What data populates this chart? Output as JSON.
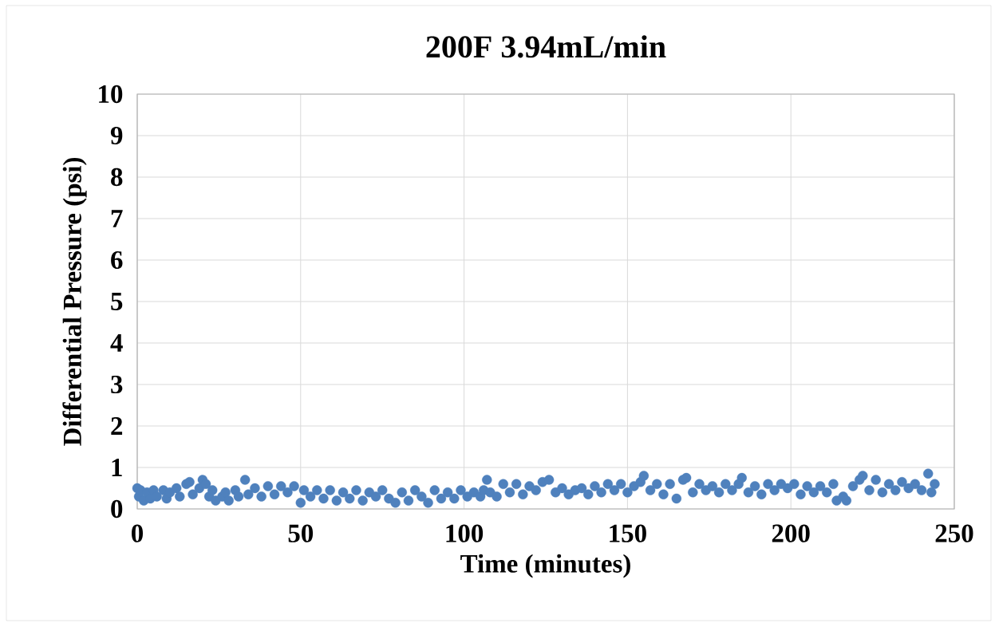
{
  "chart_data": {
    "type": "scatter",
    "title": "200F 3.94mL/min",
    "xlabel": "Time (minutes)",
    "ylabel": "Differential Pressure (psi)",
    "xlim": [
      0,
      250
    ],
    "xticks": [
      0,
      50,
      100,
      150,
      200,
      250
    ],
    "ylim": [
      0,
      10
    ],
    "yticks": [
      0,
      1,
      2,
      3,
      4,
      5,
      6,
      7,
      8,
      9,
      10
    ],
    "grid": true,
    "marker": "circle",
    "series": [
      {
        "color": "#4f81bd",
        "x": [
          0,
          0.5,
          1,
          2,
          3,
          4,
          5,
          6,
          8,
          9,
          10,
          12,
          13,
          15,
          16,
          17,
          19,
          20,
          21,
          22,
          23,
          24,
          26,
          27,
          28,
          30,
          31,
          33,
          34,
          36,
          38,
          40,
          42,
          44,
          46,
          48,
          50,
          51,
          53,
          55,
          57,
          59,
          61,
          63,
          65,
          67,
          69,
          71,
          73,
          75,
          77,
          79,
          81,
          83,
          85,
          87,
          89,
          91,
          93,
          95,
          97,
          99,
          101,
          103,
          105,
          106,
          107,
          108,
          110,
          112,
          114,
          116,
          118,
          120,
          122,
          124,
          126,
          128,
          130,
          132,
          134,
          136,
          138,
          140,
          142,
          144,
          146,
          148,
          150,
          152,
          154,
          155,
          157,
          159,
          161,
          163,
          165,
          167,
          168,
          170,
          172,
          174,
          176,
          178,
          180,
          182,
          184,
          185,
          187,
          189,
          191,
          193,
          195,
          197,
          199,
          201,
          203,
          205,
          207,
          209,
          211,
          213,
          214,
          216,
          217,
          219,
          221,
          222,
          224,
          226,
          228,
          230,
          232,
          234,
          236,
          238,
          240,
          242,
          243,
          244
        ],
        "values": [
          0.5,
          0.3,
          0.45,
          0.2,
          0.4,
          0.25,
          0.45,
          0.3,
          0.45,
          0.25,
          0.4,
          0.5,
          0.3,
          0.6,
          0.65,
          0.35,
          0.5,
          0.7,
          0.6,
          0.3,
          0.45,
          0.2,
          0.3,
          0.4,
          0.2,
          0.45,
          0.3,
          0.7,
          0.35,
          0.5,
          0.3,
          0.55,
          0.35,
          0.55,
          0.4,
          0.55,
          0.15,
          0.45,
          0.3,
          0.45,
          0.25,
          0.45,
          0.2,
          0.4,
          0.25,
          0.45,
          0.2,
          0.4,
          0.3,
          0.45,
          0.25,
          0.15,
          0.4,
          0.2,
          0.45,
          0.3,
          0.15,
          0.45,
          0.25,
          0.4,
          0.25,
          0.45,
          0.3,
          0.4,
          0.3,
          0.45,
          0.7,
          0.4,
          0.3,
          0.6,
          0.4,
          0.6,
          0.35,
          0.55,
          0.45,
          0.65,
          0.7,
          0.4,
          0.5,
          0.35,
          0.45,
          0.5,
          0.35,
          0.55,
          0.4,
          0.6,
          0.45,
          0.6,
          0.4,
          0.55,
          0.65,
          0.8,
          0.45,
          0.6,
          0.35,
          0.6,
          0.25,
          0.7,
          0.75,
          0.4,
          0.6,
          0.45,
          0.55,
          0.4,
          0.6,
          0.45,
          0.6,
          0.75,
          0.4,
          0.55,
          0.35,
          0.6,
          0.45,
          0.6,
          0.5,
          0.6,
          0.35,
          0.55,
          0.4,
          0.55,
          0.4,
          0.6,
          0.2,
          0.3,
          0.2,
          0.55,
          0.7,
          0.8,
          0.45,
          0.7,
          0.4,
          0.6,
          0.45,
          0.65,
          0.5,
          0.6,
          0.45,
          0.85,
          0.4,
          0.6
        ]
      }
    ]
  }
}
